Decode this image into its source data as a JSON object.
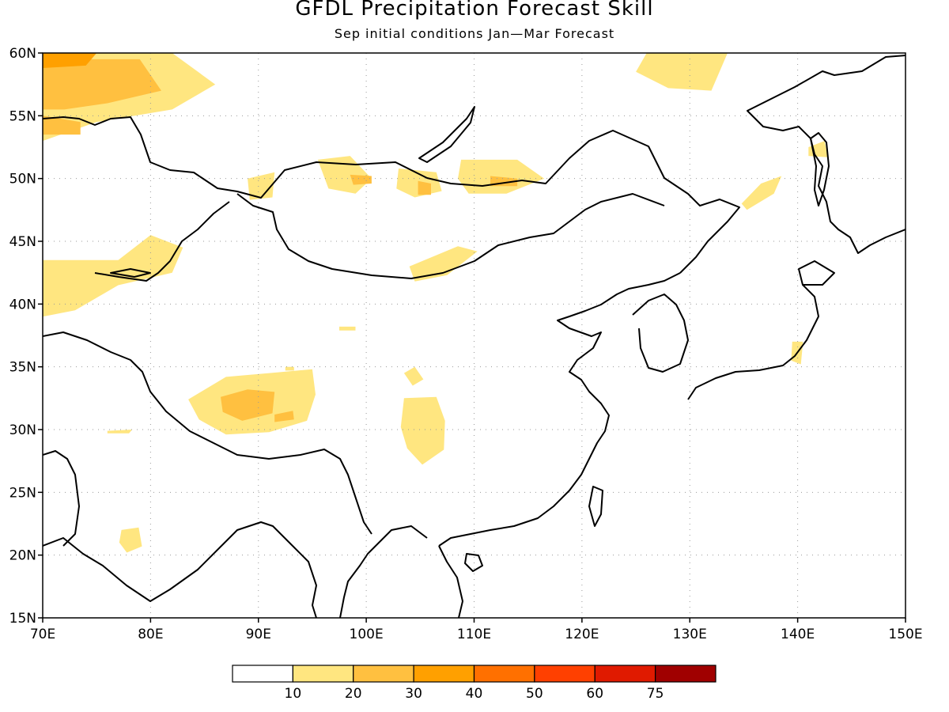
{
  "title": "GFDL Precipitation Forecast Skill",
  "subtitle": "Sep initial conditions  Jan—Mar Forecast",
  "map": {
    "lon_range": [
      70,
      150
    ],
    "lat_range": [
      15,
      60
    ],
    "lon_ticks": [
      "70E",
      "80E",
      "90E",
      "100E",
      "110E",
      "120E",
      "130E",
      "140E",
      "150E"
    ],
    "lat_ticks": [
      "15N",
      "20N",
      "25N",
      "30N",
      "35N",
      "40N",
      "45N",
      "50N",
      "55N",
      "60N"
    ],
    "grid": true
  },
  "colorbar": {
    "colors": [
      "#ffffff",
      "#ffe680",
      "#ffc040",
      "#ffa000",
      "#ff7000",
      "#ff4000",
      "#e01a00",
      "#a00000"
    ],
    "labels": [
      "10",
      "20",
      "30",
      "40",
      "50",
      "60",
      "75"
    ]
  },
  "skill_regions": [
    {
      "level": 1,
      "poly": [
        [
          70,
          60
        ],
        [
          82,
          60
        ],
        [
          86,
          57.5
        ],
        [
          82,
          55.5
        ],
        [
          75,
          54.5
        ],
        [
          70,
          53
        ]
      ]
    },
    {
      "level": 2,
      "poly": [
        [
          70,
          59.5
        ],
        [
          79,
          59.5
        ],
        [
          81,
          57
        ],
        [
          76,
          56
        ],
        [
          72,
          55.5
        ],
        [
          70,
          55.5
        ]
      ]
    },
    {
      "level": 3,
      "poly": [
        [
          70,
          60
        ],
        [
          75,
          60
        ],
        [
          74,
          59
        ],
        [
          70,
          58.8
        ]
      ]
    },
    {
      "level": 2,
      "poly": [
        [
          70,
          55
        ],
        [
          73.5,
          54.5
        ],
        [
          73.5,
          53.5
        ],
        [
          70,
          53.5
        ]
      ]
    },
    {
      "level": 1,
      "poly": [
        [
          126,
          60
        ],
        [
          133.5,
          60
        ],
        [
          132,
          57
        ],
        [
          128,
          57.2
        ],
        [
          125,
          58.5
        ]
      ]
    },
    {
      "level": 1,
      "poly": [
        [
          70,
          43.5
        ],
        [
          77,
          43.5
        ],
        [
          80,
          45.5
        ],
        [
          83,
          44.5
        ],
        [
          82,
          42.5
        ],
        [
          77,
          41.5
        ],
        [
          73,
          39.5
        ],
        [
          70,
          39
        ]
      ]
    },
    {
      "level": 1,
      "poly": [
        [
          95.5,
          51.5
        ],
        [
          98.5,
          51.8
        ],
        [
          100.5,
          50
        ],
        [
          99,
          48.8
        ],
        [
          96.5,
          49.2
        ]
      ]
    },
    {
      "level": 2,
      "poly": [
        [
          98.5,
          50.3
        ],
        [
          100.5,
          50.2
        ],
        [
          100.5,
          49.6
        ],
        [
          98.8,
          49.5
        ]
      ]
    },
    {
      "level": 1,
      "poly": [
        [
          103,
          50.8
        ],
        [
          106.5,
          50.5
        ],
        [
          107,
          49
        ],
        [
          104.5,
          48.5
        ],
        [
          102.8,
          49.2
        ]
      ]
    },
    {
      "level": 2,
      "poly": [
        [
          104.8,
          49.8
        ],
        [
          106,
          49.6
        ],
        [
          106,
          48.7
        ],
        [
          104.8,
          48.7
        ]
      ]
    },
    {
      "level": 1,
      "poly": [
        [
          108.8,
          51.5
        ],
        [
          114,
          51.5
        ],
        [
          116.5,
          50
        ],
        [
          113,
          48.8
        ],
        [
          109.5,
          48.8
        ],
        [
          108.5,
          50
        ]
      ]
    },
    {
      "level": 2,
      "poly": [
        [
          111.5,
          50.2
        ],
        [
          114,
          50
        ],
        [
          114,
          49.4
        ],
        [
          111.5,
          49.4
        ]
      ]
    },
    {
      "level": 1,
      "poly": [
        [
          89,
          50
        ],
        [
          91.5,
          50.5
        ],
        [
          91.3,
          48.5
        ],
        [
          89.2,
          48.3
        ]
      ]
    },
    {
      "level": 1,
      "poly": [
        [
          104,
          43
        ],
        [
          108.5,
          44.6
        ],
        [
          110.3,
          44.2
        ],
        [
          107.5,
          42.3
        ],
        [
          104.5,
          41.8
        ]
      ]
    },
    {
      "level": 1,
      "poly": [
        [
          134.8,
          48
        ],
        [
          136.6,
          49.6
        ],
        [
          138.5,
          50.2
        ],
        [
          137.8,
          48.8
        ],
        [
          135.3,
          47.5
        ]
      ]
    },
    {
      "level": 1,
      "poly": [
        [
          141,
          52.5
        ],
        [
          142.5,
          53
        ],
        [
          142.8,
          51.7
        ],
        [
          141,
          51.8
        ]
      ]
    },
    {
      "level": 1,
      "poly": [
        [
          139.5,
          37
        ],
        [
          140.5,
          37
        ],
        [
          140.3,
          35.2
        ],
        [
          139.4,
          35.5
        ]
      ]
    },
    {
      "level": 1,
      "poly": [
        [
          83.5,
          32.4
        ],
        [
          87,
          34.2
        ],
        [
          91,
          34.5
        ],
        [
          95,
          34.8
        ],
        [
          95.3,
          32.8
        ],
        [
          94.5,
          30.7
        ],
        [
          91,
          29.8
        ],
        [
          87,
          29.6
        ],
        [
          84.5,
          30.8
        ]
      ]
    },
    {
      "level": 2,
      "poly": [
        [
          86.5,
          32.6
        ],
        [
          89,
          33.2
        ],
        [
          91.5,
          33
        ],
        [
          91.3,
          31.3
        ],
        [
          88.5,
          30.7
        ],
        [
          86.7,
          31.4
        ]
      ]
    },
    {
      "level": 2,
      "poly": [
        [
          91.5,
          31.2
        ],
        [
          93.2,
          31.5
        ],
        [
          93.3,
          30.8
        ],
        [
          91.5,
          30.6
        ]
      ]
    },
    {
      "level": 1,
      "poly": [
        [
          103.5,
          32.5
        ],
        [
          106.5,
          32.6
        ],
        [
          107.3,
          30.7
        ],
        [
          107.2,
          28.4
        ],
        [
          105.2,
          27.2
        ],
        [
          103.8,
          28.5
        ],
        [
          103.2,
          30.2
        ]
      ]
    },
    {
      "level": 1,
      "poly": [
        [
          103.5,
          34.5
        ],
        [
          104.5,
          35
        ],
        [
          105.3,
          34
        ],
        [
          104.3,
          33.5
        ]
      ]
    },
    {
      "level": 1,
      "poly": [
        [
          77.3,
          22
        ],
        [
          78.9,
          22.2
        ],
        [
          79.2,
          20.7
        ],
        [
          77.8,
          20.2
        ],
        [
          77.1,
          21
        ]
      ]
    },
    {
      "level": 1,
      "poly": [
        [
          76,
          29.9
        ],
        [
          78.3,
          30
        ],
        [
          78,
          29.7
        ],
        [
          76,
          29.7
        ]
      ]
    },
    {
      "level": 1,
      "poly": [
        [
          97.5,
          38.2
        ],
        [
          99,
          38.2
        ],
        [
          99,
          37.9
        ],
        [
          97.5,
          37.9
        ]
      ]
    },
    {
      "level": 1,
      "poly": [
        [
          92.5,
          35
        ],
        [
          93.3,
          35
        ],
        [
          93.3,
          34.7
        ],
        [
          92.5,
          34.7
        ]
      ]
    }
  ]
}
